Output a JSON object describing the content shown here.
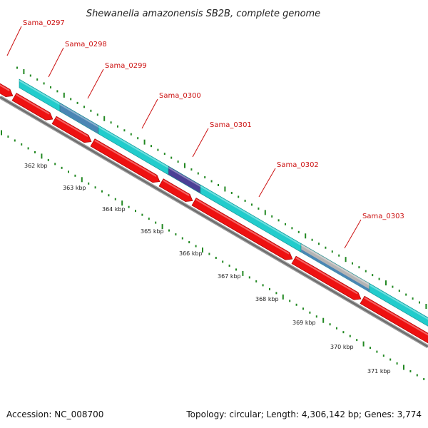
{
  "header": {
    "title": "Shewanella amazonensis SB2B, complete genome"
  },
  "footer": {
    "accession": "Accession: NC_008700",
    "stats": "Topology: circular; Length: 4,306,142 bp; Genes: 3,774"
  },
  "genes": [
    {
      "name": "Sama_0297"
    },
    {
      "name": "Sama_0298"
    },
    {
      "name": "Sama_0299"
    },
    {
      "name": "Sama_0300"
    },
    {
      "name": "Sama_0301"
    },
    {
      "name": "Sama_0302"
    },
    {
      "name": "Sama_0303"
    }
  ],
  "ruler": [
    {
      "label": "362 kbp"
    },
    {
      "label": "363 kbp"
    },
    {
      "label": "364 kbp"
    },
    {
      "label": "365 kbp"
    },
    {
      "label": "366 kbp"
    },
    {
      "label": "367 kbp"
    },
    {
      "label": "368 kbp"
    },
    {
      "label": "369 kbp"
    },
    {
      "label": "370 kbp"
    },
    {
      "label": "371 kbp"
    }
  ],
  "colors": {
    "cds_forward": "#22cccc",
    "cds_reverse": "#ee1111",
    "gene_label": "#cc1111",
    "ticks": "#228822",
    "backbone": "#777777"
  }
}
